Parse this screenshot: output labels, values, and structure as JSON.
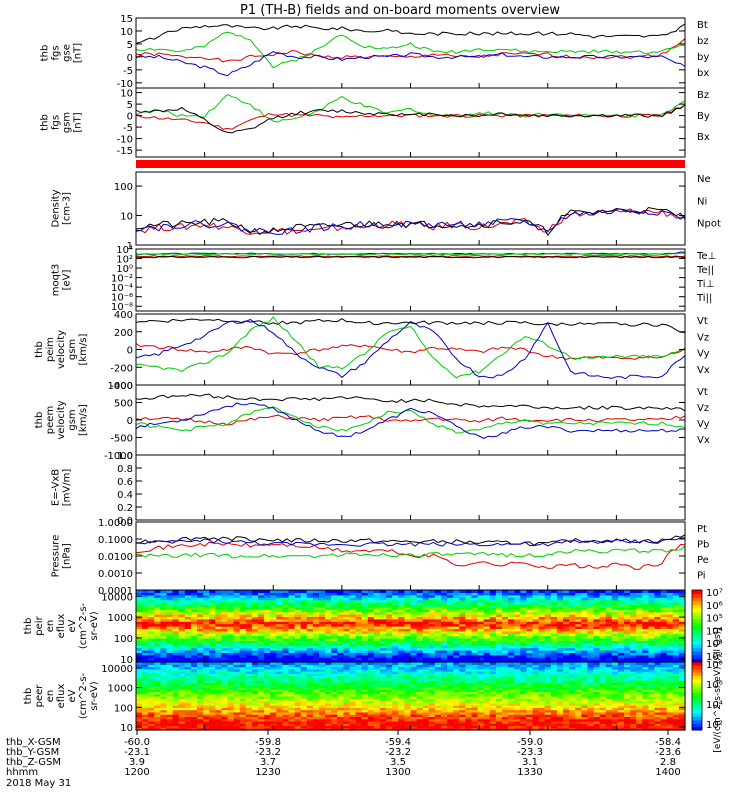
{
  "title": "P1 (TH-B) fields and on-board moments overview",
  "colors": {
    "black": "#000000",
    "red": "#dd0000",
    "green": "#00cc00",
    "blue": "#0000cc"
  },
  "chart_data": [
    {
      "type": "line",
      "ylabel": [
        "thb",
        "fgs",
        "gse",
        "[nT]"
      ],
      "ylim": [
        -12,
        15
      ],
      "yticks": [
        "15",
        "10",
        "5",
        "0",
        "-5",
        "-10"
      ],
      "yticks_v": [
        15,
        10,
        5,
        0,
        -5,
        -10
      ],
      "series": [
        {
          "name": "Bt",
          "color": "#000000",
          "values": [
            5,
            8,
            11,
            12,
            12,
            11,
            11,
            12,
            11,
            11,
            10,
            10,
            9,
            9,
            9,
            9,
            9,
            9,
            9,
            9,
            8,
            8,
            8,
            8,
            12
          ]
        },
        {
          "name": "bz",
          "color": "#dd0000",
          "values": [
            1,
            1,
            0,
            0,
            -2,
            0,
            1,
            2,
            0,
            0,
            0,
            0,
            0,
            1,
            0,
            0,
            1,
            1,
            1,
            0,
            0,
            0,
            0,
            1,
            7
          ]
        },
        {
          "name": "by",
          "color": "#00cc00",
          "values": [
            3,
            3,
            2,
            4,
            10,
            7,
            -4,
            -1,
            3,
            9,
            4,
            3,
            5,
            2,
            2,
            3,
            3,
            2,
            2,
            2,
            2,
            2,
            2,
            2,
            5
          ]
        },
        {
          "name": "bx",
          "color": "#0000cc",
          "values": [
            0,
            0,
            -2,
            -4,
            -7,
            -3,
            2,
            0,
            0,
            -1,
            0,
            0,
            1,
            0,
            0,
            0,
            1,
            0,
            0,
            0,
            0,
            0,
            0,
            0,
            -4
          ]
        }
      ]
    },
    {
      "type": "line",
      "ylabel": [
        "thb",
        "fgs",
        "gsm",
        "[nT]"
      ],
      "ylim": [
        -18,
        12
      ],
      "yticks": [
        "10",
        "5",
        "0",
        "-5",
        "-10",
        "-15"
      ],
      "yticks_v": [
        10,
        5,
        0,
        -5,
        -10,
        -15
      ],
      "series": [
        {
          "name": "Bz",
          "color": "#00cc00",
          "values": [
            1,
            2,
            0,
            0,
            9,
            5,
            -3,
            -1,
            2,
            8,
            4,
            1,
            3,
            0,
            0,
            1,
            1,
            0,
            1,
            0,
            0,
            0,
            0,
            1,
            6
          ]
        },
        {
          "name": "By",
          "color": "#dd0000",
          "values": [
            0,
            -1,
            -2,
            -3,
            -6,
            -2,
            1,
            0,
            0,
            -1,
            0,
            0,
            0,
            0,
            0,
            0,
            0,
            0,
            0,
            0,
            0,
            0,
            0,
            0,
            5
          ]
        },
        {
          "name": "Bx",
          "color": "#000000",
          "values": [
            2,
            2,
            3,
            -2,
            -8,
            -6,
            -1,
            1,
            2,
            2,
            1,
            1,
            0,
            1,
            0,
            0,
            1,
            0,
            0,
            0,
            0,
            0,
            0,
            0,
            4
          ]
        }
      ]
    },
    {
      "type": "line",
      "scale": "log",
      "ylabel": [
        "Density",
        "[cm-3]"
      ],
      "ylim": [
        1,
        300
      ],
      "yticks": [
        "100",
        "10",
        "1"
      ],
      "yticks_v": [
        100,
        10,
        1
      ],
      "series": [
        {
          "name": "Ne",
          "color": "#dd0000",
          "values": [
            3,
            4,
            4,
            5,
            4,
            3,
            3,
            3,
            3,
            4,
            4,
            5,
            5,
            4,
            5,
            4,
            5,
            6,
            2.5,
            11,
            12,
            13,
            14,
            13,
            8
          ]
        },
        {
          "name": "Ni",
          "color": "#000000",
          "values": [
            4,
            5,
            5,
            6,
            6,
            3,
            3,
            4,
            4,
            5,
            5,
            6,
            5,
            5,
            5,
            5,
            6,
            6,
            2.5,
            12,
            13,
            15,
            16,
            14,
            9
          ]
        },
        {
          "name": "Npot",
          "color": "#0000cc",
          "values": [
            4,
            4,
            5,
            5,
            5,
            3,
            3,
            3,
            4,
            4,
            5,
            5,
            5,
            5,
            5,
            5,
            6,
            6,
            2.5,
            11,
            12,
            14,
            15,
            13,
            8
          ]
        }
      ]
    },
    {
      "type": "line",
      "scale": "log",
      "ylabel": [
        "moqt3",
        "[eV]"
      ],
      "ylim": [
        1e-09,
        10000
      ],
      "yticks": [
        "10⁴",
        "10²",
        "10⁰",
        "10⁻²",
        "10⁻⁴",
        "10⁻⁶",
        "10⁻⁸"
      ],
      "yticks_v": [
        10000,
        100,
        1,
        0.01,
        0.0001,
        1e-06,
        1e-08
      ],
      "series": [
        {
          "name": "Te⊥",
          "color": "#dd0000",
          "values": [
            300,
            300,
            300,
            300,
            300,
            300,
            300,
            300,
            300,
            300,
            300,
            300,
            300,
            300,
            300,
            300,
            300,
            300,
            300,
            300,
            300,
            300,
            300,
            300,
            300
          ]
        },
        {
          "name": "Te||",
          "color": "#000000",
          "values": [
            200,
            200,
            200,
            200,
            200,
            200,
            200,
            200,
            200,
            200,
            200,
            200,
            200,
            200,
            200,
            200,
            200,
            200,
            200,
            200,
            200,
            200,
            200,
            200,
            200
          ]
        },
        {
          "name": "Ti⊥",
          "color": "#0000cc",
          "values": [
            900,
            1000,
            1000,
            1100,
            1100,
            1100,
            1000,
            1000,
            1000,
            1000,
            1000,
            1000,
            1000,
            1000,
            1000,
            1000,
            1000,
            1000,
            1000,
            1000,
            1000,
            1000,
            1000,
            1000,
            2000
          ]
        },
        {
          "name": "Ti||",
          "color": "#00cc00",
          "values": [
            700,
            800,
            800,
            800,
            900,
            900,
            800,
            800,
            800,
            800,
            800,
            800,
            800,
            800,
            800,
            800,
            800,
            800,
            800,
            800,
            800,
            800,
            800,
            800,
            1500
          ]
        }
      ]
    },
    {
      "type": "line",
      "ylabel": [
        "thb",
        "peim",
        "velocity",
        "gsm",
        "[km/s]"
      ],
      "ylim": [
        -400,
        400
      ],
      "yticks": [
        "400",
        "200",
        "0",
        "-200",
        "-400"
      ],
      "yticks_v": [
        400,
        200,
        0,
        -200,
        -400
      ],
      "series": [
        {
          "name": "Vt",
          "color": "#000000",
          "values": [
            320,
            320,
            330,
            340,
            330,
            320,
            300,
            300,
            320,
            330,
            300,
            300,
            300,
            300,
            300,
            300,
            300,
            300,
            280,
            290,
            280,
            290,
            280,
            280,
            200
          ]
        },
        {
          "name": "Vz",
          "color": "#dd0000",
          "values": [
            50,
            30,
            0,
            -30,
            0,
            30,
            -50,
            -40,
            0,
            30,
            50,
            0,
            -30,
            20,
            0,
            -30,
            20,
            0,
            -80,
            -100,
            -90,
            -100,
            -90,
            -90,
            0
          ]
        },
        {
          "name": "Vy",
          "color": "#00cc00",
          "values": [
            -180,
            -200,
            -240,
            -150,
            -40,
            220,
            350,
            100,
            -200,
            -200,
            -50,
            200,
            250,
            -100,
            -300,
            -250,
            -50,
            150,
            50,
            -80,
            -100,
            -80,
            -80,
            -80,
            0
          ]
        },
        {
          "name": "Vx",
          "color": "#0000cc",
          "values": [
            -100,
            -50,
            50,
            150,
            300,
            330,
            200,
            -50,
            -200,
            -300,
            -150,
            100,
            300,
            200,
            -100,
            -300,
            -300,
            -100,
            300,
            -250,
            -300,
            -320,
            -300,
            -300,
            -50
          ]
        }
      ]
    },
    {
      "type": "line",
      "ylabel": [
        "thb",
        "peem",
        "velocity",
        "gsm",
        "[km/s]"
      ],
      "ylim": [
        -1000,
        1000
      ],
      "yticks": [
        "1000",
        "500",
        "0",
        "-500",
        "-1000"
      ],
      "yticks_v": [
        1000,
        500,
        0,
        -500,
        -1000
      ],
      "series": [
        {
          "name": "Vt",
          "color": "#000000",
          "values": [
            600,
            650,
            700,
            700,
            650,
            600,
            600,
            600,
            600,
            650,
            600,
            550,
            550,
            550,
            450,
            400,
            400,
            400,
            350,
            350,
            350,
            350,
            350,
            350,
            300
          ]
        },
        {
          "name": "Vz",
          "color": "#dd0000",
          "values": [
            50,
            50,
            0,
            -50,
            -100,
            0,
            100,
            50,
            0,
            50,
            100,
            0,
            -50,
            50,
            0,
            -50,
            50,
            0,
            0,
            0,
            0,
            0,
            0,
            0,
            100
          ]
        },
        {
          "name": "Vy",
          "color": "#00cc00",
          "values": [
            -100,
            -200,
            -300,
            -200,
            -100,
            200,
            350,
            100,
            -200,
            -300,
            -100,
            200,
            250,
            -100,
            -350,
            -300,
            -100,
            0,
            -100,
            -100,
            -100,
            -100,
            -100,
            -100,
            -200
          ]
        },
        {
          "name": "Vx",
          "color": "#0000cc",
          "values": [
            -200,
            -100,
            0,
            200,
            400,
            500,
            300,
            0,
            -300,
            -500,
            -300,
            0,
            300,
            200,
            -200,
            -500,
            -400,
            -200,
            -200,
            -300,
            -300,
            -300,
            -300,
            -300,
            -300
          ]
        }
      ]
    },
    {
      "type": "line",
      "ylabel": [
        "E=-VxB",
        "[mV/m]"
      ],
      "ylim": [
        0,
        1.0
      ],
      "yticks": [
        "1.0",
        "0.8",
        "0.6",
        "0.4",
        "0.2",
        "0.0"
      ],
      "yticks_v": [
        1.0,
        0.8,
        0.6,
        0.4,
        0.2,
        0.0
      ],
      "series": [
        {
          "name": "Ez",
          "color": "#dd0000",
          "values": []
        },
        {
          "name": "Ey",
          "color": "#00cc00",
          "values": []
        },
        {
          "name": "Ex",
          "color": "#0000cc",
          "values": []
        }
      ]
    },
    {
      "type": "line",
      "scale": "log",
      "ylabel": [
        "Pressure",
        "[nPa]"
      ],
      "ylim": [
        0.0001,
        1.0
      ],
      "yticks": [
        "1.0000",
        "0.1000",
        "0.0100",
        "0.0010",
        "0.0001"
      ],
      "yticks_v": [
        1.0,
        0.1,
        0.01,
        0.001,
        0.0001
      ],
      "series": [
        {
          "name": "Pt",
          "color": "#000000",
          "values": [
            0.07,
            0.08,
            0.1,
            0.12,
            0.11,
            0.1,
            0.09,
            0.08,
            0.08,
            0.08,
            0.08,
            0.07,
            0.07,
            0.07,
            0.07,
            0.06,
            0.06,
            0.06,
            0.05,
            0.08,
            0.08,
            0.08,
            0.08,
            0.08,
            0.15
          ]
        },
        {
          "name": "Pb",
          "color": "#dd0000",
          "values": [
            0.02,
            0.03,
            0.04,
            0.05,
            0.05,
            0.04,
            0.05,
            0.04,
            0.03,
            0.02,
            0.02,
            0.02,
            0.01,
            0.01,
            0.003,
            0.004,
            0.003,
            0.004,
            0.002,
            0.003,
            0.002,
            0.003,
            0.002,
            0.003,
            0.05
          ]
        },
        {
          "name": "Pe",
          "color": "#00cc00",
          "values": [
            0.01,
            0.01,
            0.01,
            0.012,
            0.01,
            0.01,
            0.01,
            0.01,
            0.01,
            0.012,
            0.012,
            0.012,
            0.012,
            0.012,
            0.012,
            0.012,
            0.012,
            0.012,
            0.01,
            0.02,
            0.02,
            0.02,
            0.02,
            0.02,
            0.03
          ]
        },
        {
          "name": "Pi",
          "color": "#0000cc",
          "values": [
            0.05,
            0.06,
            0.07,
            0.08,
            0.07,
            0.06,
            0.05,
            0.05,
            0.05,
            0.05,
            0.05,
            0.05,
            0.05,
            0.05,
            0.05,
            0.05,
            0.05,
            0.05,
            0.04,
            0.07,
            0.07,
            0.07,
            0.07,
            0.07,
            0.12
          ]
        }
      ]
    },
    {
      "type": "heatmap",
      "ylabel": [
        "thb",
        "peir",
        "en",
        "eflux",
        "eV",
        "(cm^2-s-",
        "sr-eV)"
      ],
      "scale": "log",
      "ylim": [
        7,
        20000
      ],
      "yticks": [
        "10000",
        "1000",
        "100",
        "10"
      ],
      "yticks_v": [
        10000,
        1000,
        100,
        10
      ],
      "colorbar": {
        "min_exp": 2,
        "max_exp": 7,
        "labels": [
          "10⁷",
          "10⁶",
          "10⁵",
          "10⁴",
          "10³",
          "10²"
        ],
        "title": "[eV/(cm^2-s-sr-eV)]"
      },
      "peak_log_energy": 2.7
    },
    {
      "type": "heatmap",
      "ylabel": [
        "thb",
        "peer",
        "en",
        "eflux",
        "eV",
        "(cm^2-s-",
        "sr-eV)"
      ],
      "scale": "log",
      "ylim": [
        7,
        20000
      ],
      "yticks": [
        "10000",
        "1000",
        "100",
        "10"
      ],
      "yticks_v": [
        10000,
        1000,
        100,
        10
      ],
      "colorbar": {
        "min_exp": 2,
        "max_exp": 8,
        "labels": [
          "10⁸",
          "10⁶",
          "10⁴",
          "10²"
        ],
        "title": "[eV/(cm^2-s-sr-eV)]"
      },
      "peak_log_energy": 1.3
    }
  ],
  "extra_labels": {
    "right_axis_title": "[eV/(cm^2-s-sr-eV) (All Qs)]"
  },
  "xaxis": {
    "rows": [
      {
        "label": "thb_X-GSM",
        "values": [
          "-60.0",
          "-59.8",
          "-59.4",
          "-59.0",
          "-58.4"
        ]
      },
      {
        "label": "thb_Y-GSM",
        "values": [
          "-23.1",
          "-23.2",
          "-23.2",
          "-23.3",
          "-23.6"
        ]
      },
      {
        "label": "thb_Z-GSM",
        "values": [
          "3.9",
          "3.7",
          "3.5",
          "3.1",
          "2.8"
        ]
      },
      {
        "label": "hhmm",
        "values": [
          "1200",
          "1230",
          "1300",
          "1330",
          "1400"
        ]
      }
    ],
    "date": "2018 May 31"
  }
}
